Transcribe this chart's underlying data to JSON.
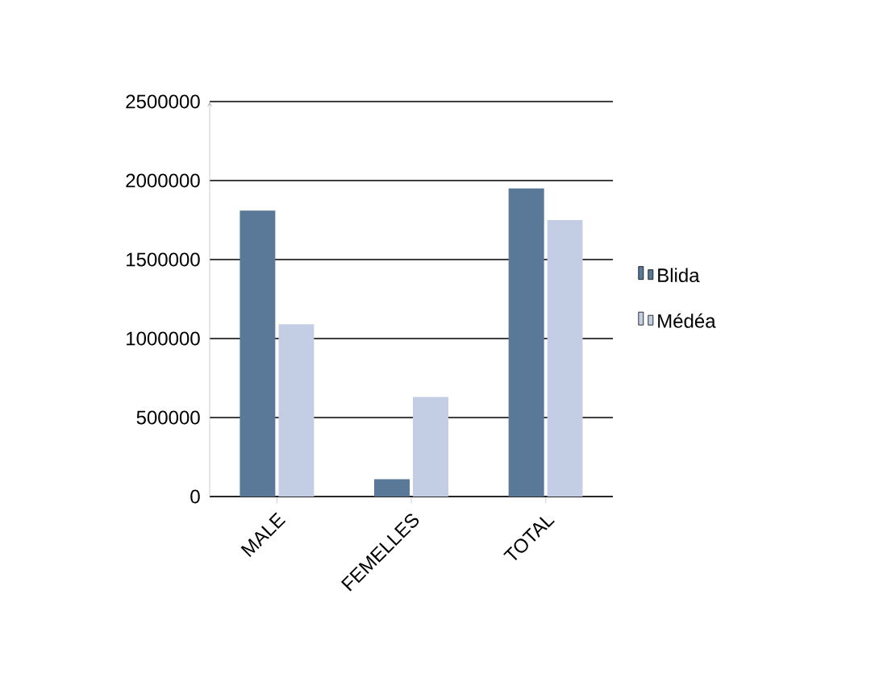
{
  "chart_data": {
    "type": "bar",
    "categories": [
      "MALE",
      "FEMELLES",
      "TOTAL"
    ],
    "series": [
      {
        "name": "Blida",
        "color": "#5a7898",
        "values": [
          1810000,
          110000,
          1950000
        ]
      },
      {
        "name": "Médéa",
        "color": "#c3cee4",
        "values": [
          1090000,
          630000,
          1750000
        ]
      }
    ],
    "ylim": [
      0,
      2500000
    ],
    "yticks": [
      0,
      500000,
      1000000,
      1500000,
      2000000,
      2500000
    ],
    "grid": "y",
    "legend": "right"
  }
}
